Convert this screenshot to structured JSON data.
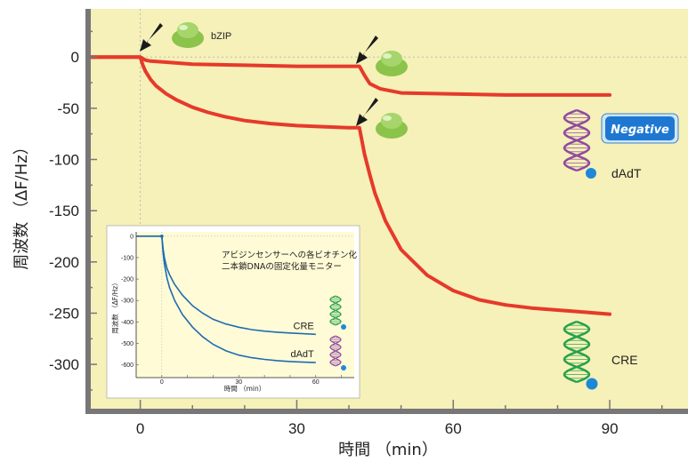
{
  "chart_data": {
    "type": "line",
    "xlabel": "時間 （min）",
    "ylabel": "周波数 （ΔF/Hz）",
    "xlim": [
      -10,
      105
    ],
    "ylim": [
      -345,
      47
    ],
    "xticks": [
      0,
      30,
      60,
      90
    ],
    "yticks": [
      0,
      -50,
      -100,
      -150,
      -200,
      -250,
      -300
    ],
    "series": [
      {
        "name": "dAdT",
        "points": [
          [
            -10,
            0
          ],
          [
            0,
            0
          ],
          [
            1,
            -3
          ],
          [
            2,
            -4
          ],
          [
            5,
            -5
          ],
          [
            10,
            -7
          ],
          [
            20,
            -8
          ],
          [
            30,
            -9
          ],
          [
            40,
            -9
          ],
          [
            42,
            -9
          ],
          [
            43,
            -18
          ],
          [
            44,
            -26
          ],
          [
            46,
            -31
          ],
          [
            50,
            -35
          ],
          [
            60,
            -36
          ],
          [
            70,
            -37
          ],
          [
            80,
            -37
          ],
          [
            90,
            -37
          ]
        ]
      },
      {
        "name": "CRE",
        "points": [
          [
            -10,
            0
          ],
          [
            0,
            0
          ],
          [
            0.5,
            -8
          ],
          [
            1,
            -14
          ],
          [
            2,
            -22
          ],
          [
            3,
            -28
          ],
          [
            5,
            -36
          ],
          [
            7,
            -42
          ],
          [
            10,
            -49
          ],
          [
            13,
            -54
          ],
          [
            16,
            -58
          ],
          [
            20,
            -62
          ],
          [
            25,
            -65
          ],
          [
            30,
            -67
          ],
          [
            35,
            -68
          ],
          [
            40,
            -69
          ],
          [
            42,
            -69
          ],
          [
            43,
            -95
          ],
          [
            44,
            -115
          ],
          [
            45,
            -133
          ],
          [
            47,
            -160
          ],
          [
            50,
            -188
          ],
          [
            55,
            -213
          ],
          [
            60,
            -228
          ],
          [
            65,
            -237
          ],
          [
            70,
            -242
          ],
          [
            75,
            -245
          ],
          [
            80,
            -247
          ],
          [
            85,
            -249
          ],
          [
            90,
            -251
          ]
        ]
      }
    ],
    "annotations": {
      "bzip": "bZIP",
      "negative": "Negative",
      "dadt_label": "dAdT",
      "cre_label": "CRE"
    },
    "colors": {
      "plot_background": "#f6f0b9",
      "line": "#e53a2a",
      "axis": "#777777",
      "gridline": "#bbbbbb",
      "protein": "#8cc34a",
      "dna_purple": "#8f4b9e",
      "dna_green": "#27a24a",
      "bead": "#1e88d8",
      "inset_background": "#fffbd6",
      "inset_line": "#1f6bb3",
      "negative_badge": "#1e78d2"
    },
    "inset": {
      "title_line1": "アビジンセンサーへの各ビオチン化",
      "title_line2": "二本鎖DNAの固定化量モニター",
      "xlabel": "時間 （min）",
      "ylabel": "周波数 （ΔF/Hz）",
      "xlim": [
        -10,
        75
      ],
      "ylim": [
        -660,
        20
      ],
      "xticks": [
        0,
        30,
        60
      ],
      "yticks": [
        0,
        -100,
        -200,
        -300,
        -400,
        -500,
        -600
      ],
      "series": [
        {
          "name": "CRE",
          "points": [
            [
              -10,
              0
            ],
            [
              0,
              0
            ],
            [
              0.5,
              -60
            ],
            [
              1,
              -100
            ],
            [
              2,
              -150
            ],
            [
              3,
              -180
            ],
            [
              5,
              -225
            ],
            [
              8,
              -275
            ],
            [
              12,
              -325
            ],
            [
              16,
              -360
            ],
            [
              20,
              -388
            ],
            [
              25,
              -410
            ],
            [
              30,
              -425
            ],
            [
              35,
              -436
            ],
            [
              40,
              -443
            ],
            [
              45,
              -448
            ],
            [
              50,
              -452
            ],
            [
              55,
              -455
            ],
            [
              60,
              -458
            ]
          ]
        },
        {
          "name": "dAdT",
          "points": [
            [
              -10,
              0
            ],
            [
              0,
              0
            ],
            [
              0.5,
              -80
            ],
            [
              1,
              -130
            ],
            [
              2,
              -195
            ],
            [
              3,
              -240
            ],
            [
              5,
              -300
            ],
            [
              8,
              -365
            ],
            [
              12,
              -425
            ],
            [
              16,
              -470
            ],
            [
              20,
              -505
            ],
            [
              25,
              -535
            ],
            [
              30,
              -555
            ],
            [
              35,
              -567
            ],
            [
              40,
              -575
            ],
            [
              45,
              -581
            ],
            [
              50,
              -585
            ],
            [
              55,
              -588
            ],
            [
              60,
              -590
            ]
          ]
        }
      ]
    }
  }
}
